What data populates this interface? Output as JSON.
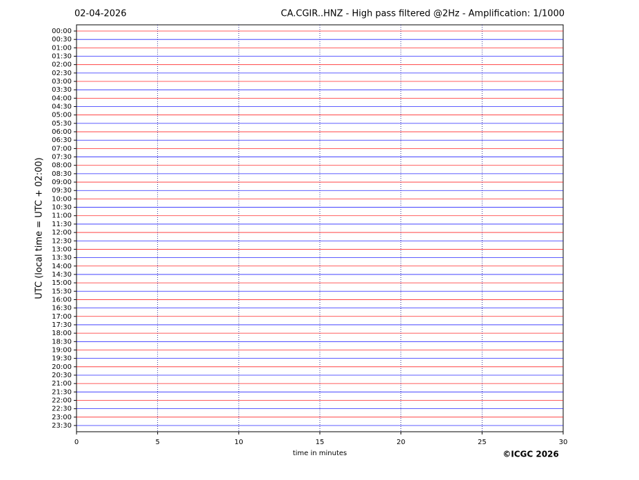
{
  "chart_data": {
    "type": "helicorder",
    "date": "02-04-2026",
    "title": "CA.CGIR..HNZ - High pass filtered @2Hz - Amplification: 1/1000",
    "ylabel": "UTC (local time = UTC + 02:00)",
    "xlabel": "time in minutes",
    "credit": "©ICGC 2026",
    "categories": [
      "00:00",
      "00:30",
      "01:00",
      "01:30",
      "02:00",
      "02:30",
      "03:00",
      "03:30",
      "04:00",
      "04:30",
      "05:00",
      "05:30",
      "06:00",
      "06:30",
      "07:00",
      "07:30",
      "08:00",
      "08:30",
      "09:00",
      "09:30",
      "10:00",
      "10:30",
      "11:00",
      "11:30",
      "12:00",
      "12:30",
      "13:00",
      "13:30",
      "14:00",
      "14:30",
      "15:00",
      "15:30",
      "16:00",
      "16:30",
      "17:00",
      "17:30",
      "18:00",
      "18:30",
      "19:00",
      "19:30",
      "20:00",
      "20:30",
      "21:00",
      "21:30",
      "22:00",
      "22:30",
      "23:00",
      "23:30"
    ],
    "colors": [
      "#ff0000",
      "#0000ff"
    ],
    "xlim": [
      0,
      30
    ],
    "xticks": [
      0,
      5,
      10,
      15,
      20,
      25,
      30
    ],
    "grid": true
  }
}
